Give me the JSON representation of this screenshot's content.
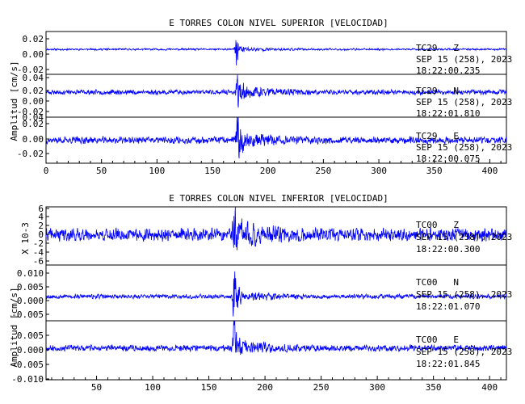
{
  "chart_data": [
    {
      "type": "line",
      "title": "E TORRES COLON NIVEL SUPERIOR [VELOCIDAD]",
      "ylabel": "Amplitud [cm/s]",
      "xlabel": "",
      "xlim": [
        0,
        415
      ],
      "xticks": [
        "0",
        "50",
        "100",
        "150",
        "200",
        "250",
        "300",
        "350",
        "400"
      ],
      "grid": false,
      "series": [
        {
          "name": "TC29 Z",
          "channel_label": "TC29   Z",
          "date_label": "SEP 15 (258), 2023",
          "time_label": "18:22:00.235",
          "ylim": [
            -0.035,
            0.025
          ],
          "yticks": [
            "0.02",
            "0.00",
            "-0.02"
          ],
          "noise_amp": 0.0012,
          "event_peak": 0.022,
          "event_time": 171,
          "coda_amp": 0.003,
          "seed": 11
        },
        {
          "name": "TC29 N",
          "channel_label": "TC29   N",
          "date_label": "SEP 15 (258), 2023",
          "time_label": "18:22:01.810",
          "ylim": [
            -0.035,
            0.025
          ],
          "yticks": [
            "0.04",
            "0.02",
            "0.00",
            "-0.02"
          ],
          "noise_amp": 0.003,
          "event_peak": 0.02,
          "event_time": 172,
          "coda_amp": 0.008,
          "seed": 23
        },
        {
          "name": "TC29 E",
          "channel_label": "TC29   E",
          "date_label": "SEP 15 (258), 2023",
          "time_label": "18:22:00.075",
          "ylim": [
            -0.03,
            0.03
          ],
          "yticks": [
            "0.04",
            "0.02",
            "0.00",
            "-0.02"
          ],
          "noise_amp": 0.004,
          "event_peak": 0.03,
          "event_time": 172,
          "coda_amp": 0.01,
          "seed": 37
        }
      ]
    },
    {
      "type": "line",
      "title": "E TORRES COLON NIVEL INFERIOR [VELOCIDAD]",
      "ylabel": "Amplitud [cm/s]",
      "xlabel": "",
      "xlim": [
        5,
        415
      ],
      "xticks": [
        "50",
        "100",
        "150",
        "200",
        "250",
        "300",
        "350",
        "400"
      ],
      "grid": false,
      "series": [
        {
          "name": "TC00 Z",
          "channel_label": "TC00   Z",
          "date_label": "SEP 15 (258), 2023",
          "time_label": "18:22:00.300",
          "scale_label": "X 10-3",
          "ylim": [
            -6.5,
            6
          ],
          "yticks": [
            "6",
            "4",
            "2",
            "0",
            "-2",
            "-4",
            "-6"
          ],
          "noise_amp": 1.2,
          "event_peak": 6,
          "event_time": 172,
          "coda_amp": 2.2,
          "seed": 41
        },
        {
          "name": "TC00 N",
          "channel_label": "TC00   N",
          "date_label": "SEP 15 (258), 2023",
          "time_label": "18:22:01.070",
          "ylim": [
            -0.0085,
            0.011
          ],
          "yticks": [
            "0.010",
            "0.005",
            "0.000",
            "-0.005"
          ],
          "noise_amp": 0.0007,
          "event_peak": 0.0105,
          "event_time": 172,
          "coda_amp": 0.002,
          "seed": 53
        },
        {
          "name": "TC00 E",
          "channel_label": "TC00   E",
          "date_label": "SEP 15 (258), 2023",
          "time_label": "18:22:01.845",
          "ylim": [
            -0.0105,
            0.009
          ],
          "yticks": [
            "0.005",
            "0.000",
            "-0.005",
            "-0.010"
          ],
          "noise_amp": 0.0009,
          "event_peak": 0.009,
          "event_time": 172,
          "coda_amp": 0.002,
          "seed": 67
        }
      ]
    }
  ]
}
